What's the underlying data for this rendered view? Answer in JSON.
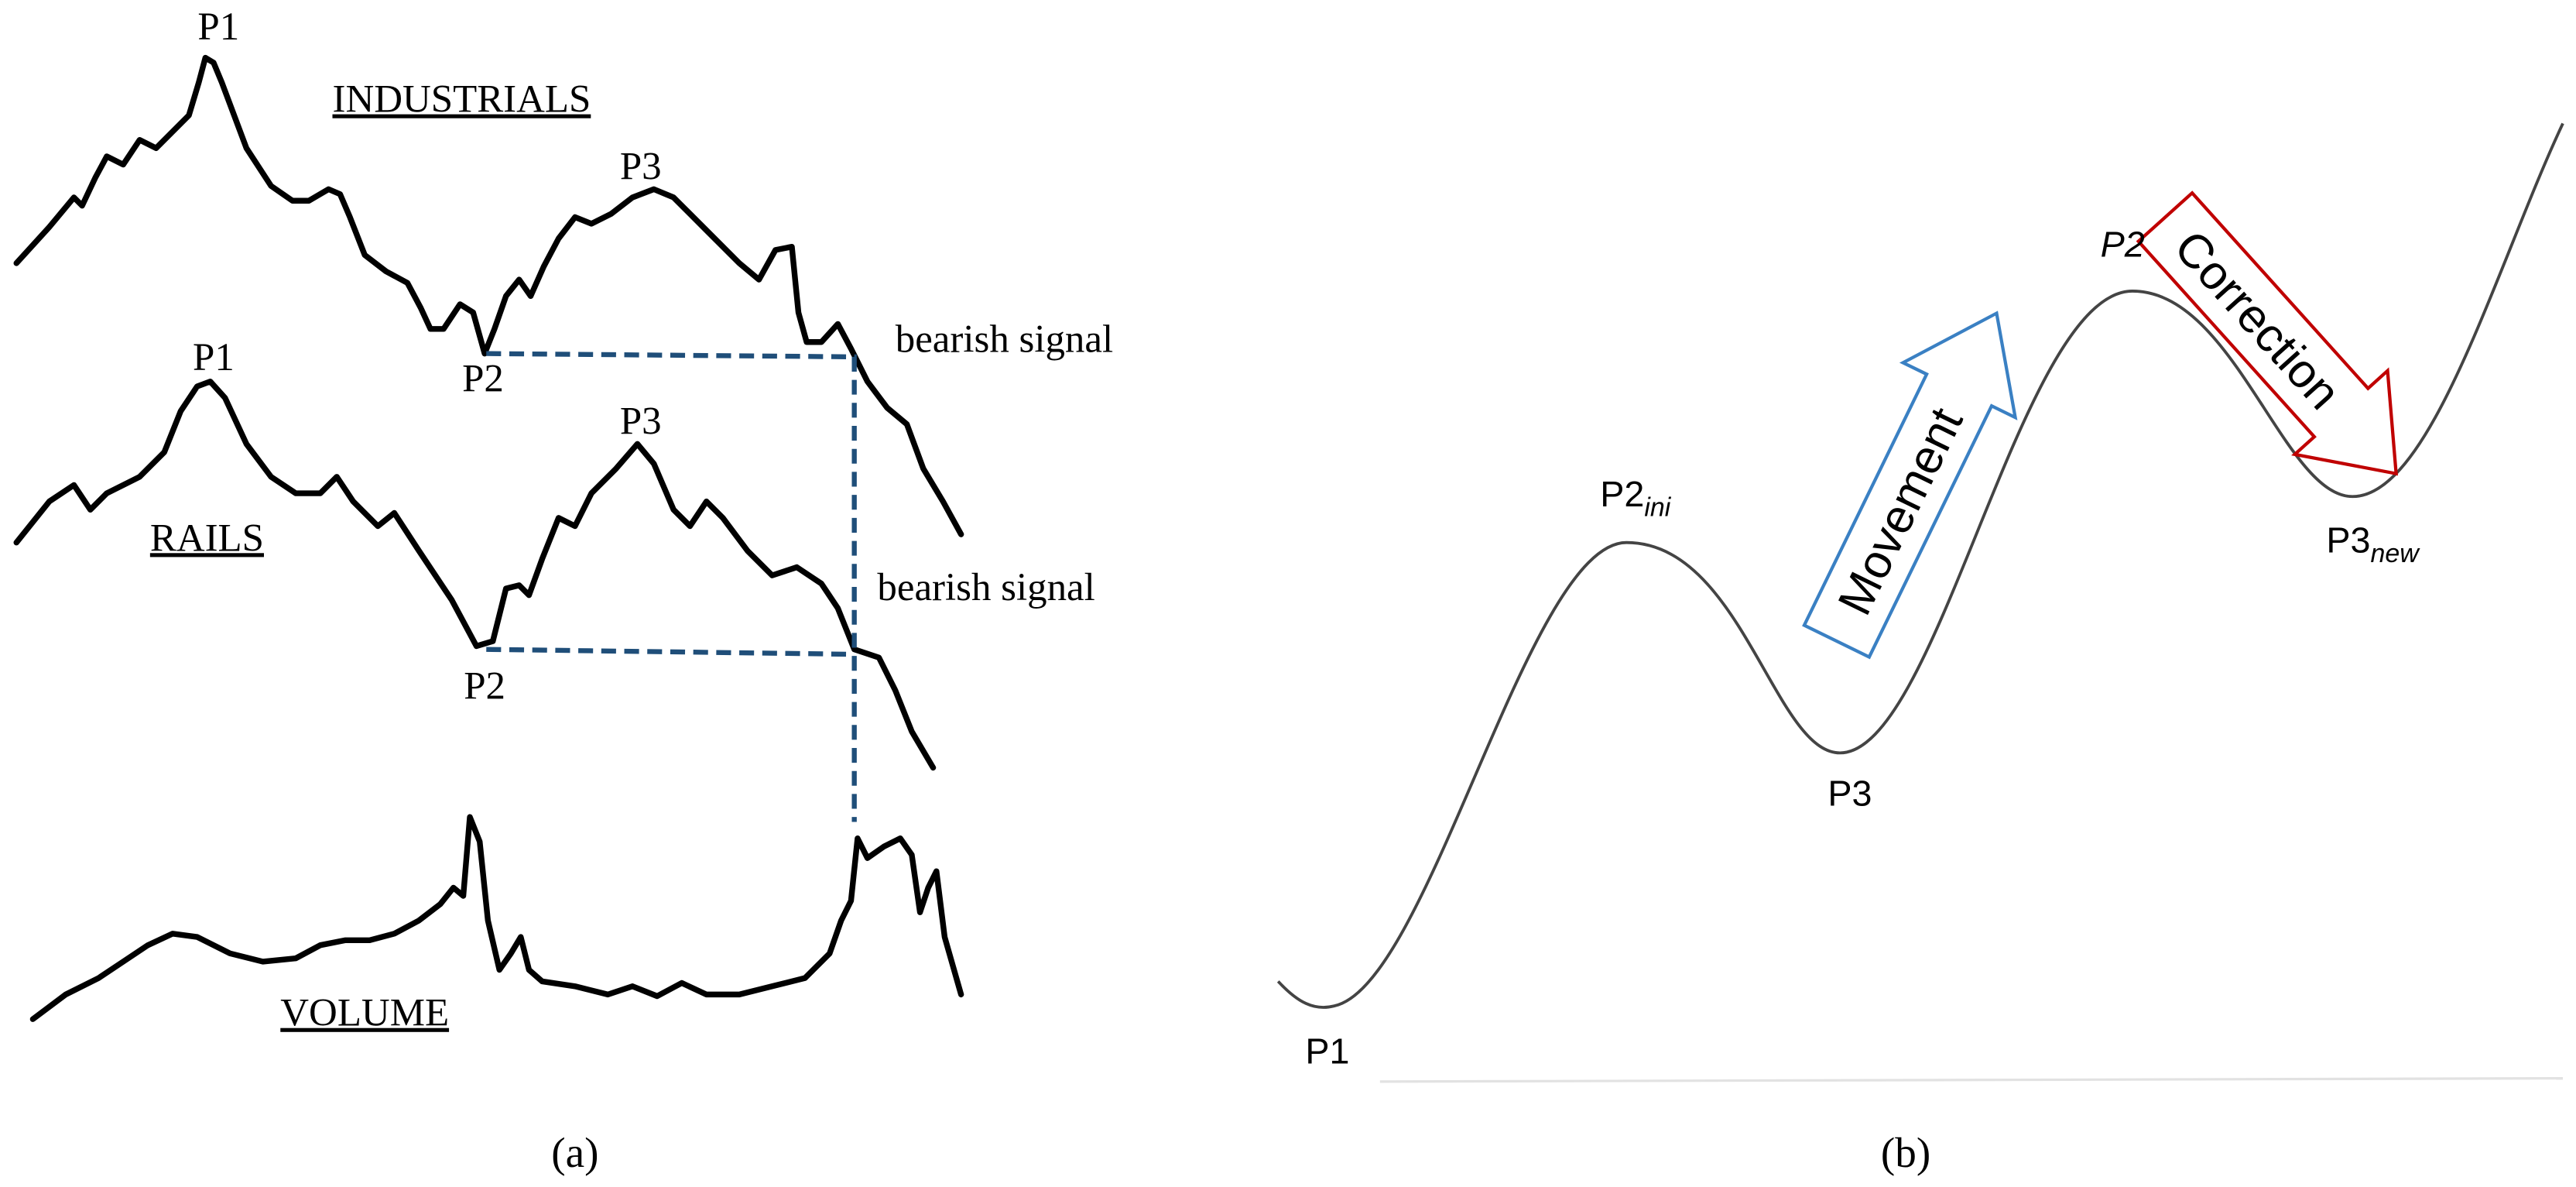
{
  "panel_a": {
    "industrials": {
      "peak1": "P1",
      "name": "INDUSTRIALS",
      "peak3": "P3",
      "trough2": "P2",
      "signal": "bearish signal"
    },
    "rails": {
      "peak1": "P1",
      "name": "RAILS",
      "peak3": "P3",
      "trough2": "P2",
      "signal": "bearish signal"
    },
    "volume": {
      "name": "VOLUME"
    },
    "caption": "(a)"
  },
  "panel_b": {
    "p1": "P1",
    "p2_ini": {
      "base": "P2",
      "sub": "ini"
    },
    "p3": "P3",
    "movement": "Movement",
    "p2": "P2",
    "correction": "Correction",
    "p3_new": {
      "base": "P3",
      "sub": "new"
    },
    "caption": "(b)"
  }
}
